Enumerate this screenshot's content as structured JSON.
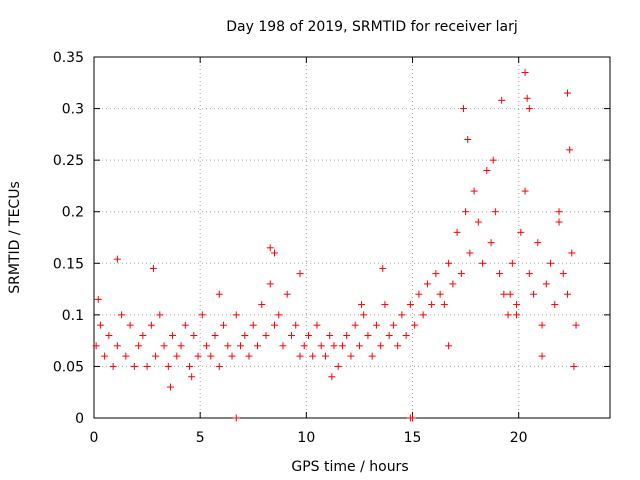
{
  "chart_data": {
    "type": "scatter",
    "title": "Day 198 of 2019, SRMTID for receiver larj",
    "xlabel": "GPS time / hours",
    "ylabel": "SRMTID / TECUs",
    "xlim": [
      0,
      24.3
    ],
    "ylim": [
      0,
      0.35
    ],
    "x_ticks": [
      0,
      5,
      10,
      15,
      20
    ],
    "x_tick_labels": [
      "0",
      "5",
      "10",
      "15",
      "20"
    ],
    "y_ticks": [
      0,
      0.05,
      0.1,
      0.15,
      0.2,
      0.25,
      0.3,
      0.35
    ],
    "y_tick_labels": [
      "0",
      "0.05",
      "0.1",
      "0.15",
      "0.2",
      "0.25",
      "0.3",
      "0.35"
    ],
    "grid": true,
    "marker": "+",
    "series_color": "#ff0000",
    "series": [
      {
        "name": "SRMTID",
        "x": [
          0.1,
          0.3,
          0.5,
          0.7,
          0.9,
          1.1,
          1.3,
          1.5,
          1.7,
          1.9,
          2.1,
          2.3,
          2.5,
          2.7,
          2.9,
          3.1,
          3.3,
          3.5,
          3.7,
          3.9,
          4.1,
          4.3,
          4.5,
          4.7,
          4.9,
          5.1,
          5.3,
          5.5,
          5.7,
          5.9,
          6.1,
          6.3,
          6.5,
          6.7,
          6.9,
          7.1,
          7.3,
          7.5,
          7.7,
          7.9,
          8.1,
          8.3,
          8.5,
          8.7,
          8.9,
          9.1,
          9.3,
          9.5,
          9.7,
          9.9,
          10.1,
          10.3,
          10.5,
          10.7,
          10.9,
          11.1,
          11.3,
          11.5,
          11.7,
          11.9,
          12.1,
          12.3,
          12.5,
          12.7,
          12.9,
          13.1,
          13.3,
          13.5,
          13.7,
          13.9,
          14.1,
          14.3,
          14.5,
          14.7,
          14.9,
          15.1,
          15.3,
          15.5,
          15.7,
          15.9,
          16.1,
          16.3,
          16.5,
          16.7,
          16.9,
          17.1,
          17.3,
          17.5,
          17.7,
          17.9,
          18.1,
          18.3,
          18.5,
          18.7,
          18.9,
          19.1,
          19.3,
          19.5,
          19.7,
          19.9,
          20.1,
          20.3,
          20.5,
          20.7,
          20.9,
          21.1,
          21.3,
          21.5,
          21.7,
          21.9,
          22.1,
          22.3,
          22.5,
          22.7,
          1.1,
          2.8,
          3.6,
          5.9,
          6.7,
          8.3,
          8.5,
          13.6,
          14.9,
          17.4,
          17.6,
          18.8,
          19.2,
          19.9,
          20.3,
          20.4,
          20.5,
          21.9,
          22.3,
          22.4,
          15.0,
          0.2,
          4.6,
          9.7,
          11.2,
          12.6,
          16.7,
          19.6,
          21.1,
          22.6
        ],
        "y": [
          0.07,
          0.09,
          0.06,
          0.08,
          0.05,
          0.07,
          0.1,
          0.06,
          0.09,
          0.05,
          0.07,
          0.08,
          0.05,
          0.09,
          0.06,
          0.1,
          0.07,
          0.05,
          0.08,
          0.06,
          0.07,
          0.09,
          0.05,
          0.08,
          0.06,
          0.1,
          0.07,
          0.06,
          0.08,
          0.05,
          0.09,
          0.07,
          0.06,
          0.1,
          0.07,
          0.08,
          0.06,
          0.09,
          0.07,
          0.11,
          0.08,
          0.13,
          0.09,
          0.1,
          0.07,
          0.12,
          0.08,
          0.09,
          0.06,
          0.07,
          0.08,
          0.06,
          0.09,
          0.07,
          0.06,
          0.08,
          0.07,
          0.05,
          0.07,
          0.08,
          0.06,
          0.09,
          0.07,
          0.1,
          0.08,
          0.06,
          0.09,
          0.07,
          0.11,
          0.08,
          0.09,
          0.07,
          0.1,
          0.08,
          0.11,
          0.09,
          0.12,
          0.1,
          0.13,
          0.11,
          0.14,
          0.12,
          0.11,
          0.15,
          0.13,
          0.18,
          0.14,
          0.2,
          0.16,
          0.22,
          0.19,
          0.15,
          0.24,
          0.17,
          0.2,
          0.14,
          0.12,
          0.1,
          0.15,
          0.11,
          0.18,
          0.22,
          0.14,
          0.12,
          0.17,
          0.09,
          0.13,
          0.15,
          0.11,
          0.19,
          0.14,
          0.12,
          0.16,
          0.09,
          0.154,
          0.145,
          0.03,
          0.12,
          0.0,
          0.165,
          0.16,
          0.145,
          0.0,
          0.3,
          0.27,
          0.25,
          0.308,
          0.1,
          0.335,
          0.31,
          0.3,
          0.2,
          0.315,
          0.26,
          0.0,
          0.115,
          0.04,
          0.14,
          0.04,
          0.11,
          0.07,
          0.12,
          0.06,
          0.05
        ]
      }
    ]
  }
}
